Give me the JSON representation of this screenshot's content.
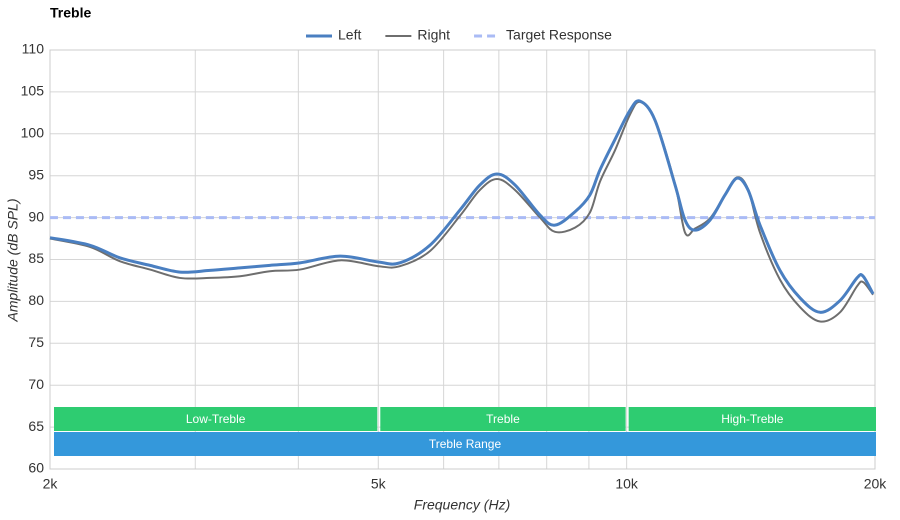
{
  "chart_data": {
    "type": "line",
    "title": "Treble",
    "x_label": "Frequency (Hz)",
    "y_label": "Amplitude (dB SPL)",
    "x_scale": "log",
    "xlim": [
      2000,
      20000
    ],
    "ylim": [
      60,
      110
    ],
    "xticks": [
      {
        "value": 2000,
        "label": "2k"
      },
      {
        "value": 5000,
        "label": "5k"
      },
      {
        "value": 10000,
        "label": "10k"
      },
      {
        "value": 20000,
        "label": "20k"
      }
    ],
    "x_grid": [
      3000,
      4000,
      6000,
      7000,
      8000,
      9000
    ],
    "yticks": [
      60,
      65,
      70,
      75,
      80,
      85,
      90,
      95,
      100,
      105,
      110
    ],
    "grid": true,
    "legend": "top",
    "x": [
      2000,
      2236,
      2430,
      2644,
      2874,
      3125,
      3399,
      3695,
      4018,
      4494,
      5000,
      5311,
      5775,
      6279,
      6640,
      6964,
      7322,
      7852,
      8186,
      8658,
      9025,
      9283,
      9677,
      10094,
      10381,
      10826,
      11446,
      11771,
      12103,
      12619,
      13159,
      13607,
      14032,
      14510,
      15340,
      16230,
      17160,
      18140,
      19020,
      19350,
      19890
    ],
    "series": [
      {
        "name": "Left",
        "color": "#4a7fc1",
        "width": 3,
        "values": [
          87.6,
          86.7,
          85.2,
          84.3,
          83.5,
          83.7,
          84.0,
          84.3,
          84.6,
          85.4,
          84.7,
          84.6,
          86.7,
          90.9,
          93.9,
          95.2,
          93.9,
          90.3,
          89.1,
          90.7,
          92.7,
          95.7,
          99.3,
          102.8,
          103.9,
          101.6,
          93.9,
          89.7,
          88.5,
          89.7,
          92.7,
          94.7,
          93.3,
          89.1,
          83.7,
          80.4,
          78.7,
          80.1,
          82.8,
          83.0,
          80.9
        ]
      },
      {
        "name": "Right",
        "color": "#6e6e6e",
        "width": 2,
        "values": [
          87.5,
          86.5,
          84.8,
          83.8,
          82.8,
          82.8,
          83.0,
          83.6,
          83.8,
          84.9,
          84.2,
          84.2,
          86.0,
          90.2,
          93.3,
          94.6,
          93.3,
          90.0,
          88.3,
          88.8,
          90.6,
          94.3,
          98.0,
          102.3,
          103.8,
          101.6,
          94.0,
          88.2,
          88.7,
          89.9,
          92.7,
          94.8,
          93.4,
          88.2,
          82.6,
          79.3,
          77.6,
          78.7,
          81.8,
          82.3,
          80.8
        ]
      }
    ],
    "target": {
      "name": "Target Response",
      "color": "#aabbf5",
      "x": [
        2000,
        20000
      ],
      "values": [
        90,
        90
      ]
    },
    "bands": [
      {
        "label": "Low-Treble",
        "from": 2000,
        "to": 5000,
        "color": "#2ecc71"
      },
      {
        "label": "Treble",
        "from": 5000,
        "to": 10000,
        "color": "#2ecc71"
      },
      {
        "label": "High-Treble",
        "from": 10000,
        "to": 20000,
        "color": "#2ecc71"
      },
      {
        "label": "Treble Range",
        "from": 2000,
        "to": 20000,
        "color": "#3498db"
      }
    ]
  }
}
